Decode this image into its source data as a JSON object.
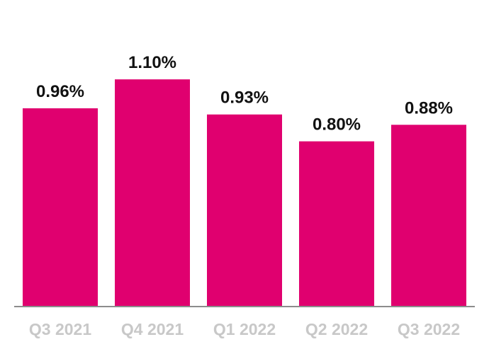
{
  "chart_data": {
    "type": "bar",
    "title": "",
    "xlabel": "",
    "ylabel": "",
    "categories": [
      "Q3 2021",
      "Q4 2021",
      "Q1 2022",
      "Q2 2022",
      "Q3 2022"
    ],
    "values": [
      0.96,
      1.1,
      0.93,
      0.8,
      0.88
    ],
    "data_labels": [
      "0.96%",
      "1.10%",
      "0.93%",
      "0.80%",
      "0.88%"
    ],
    "ylim": [
      0,
      1.33
    ],
    "grid": false,
    "legend": "none",
    "colors": {
      "bar": "#e0006f",
      "axis": "#8c8c8c",
      "data_label": "#111111",
      "tick_label": "#c8c8c8"
    }
  }
}
